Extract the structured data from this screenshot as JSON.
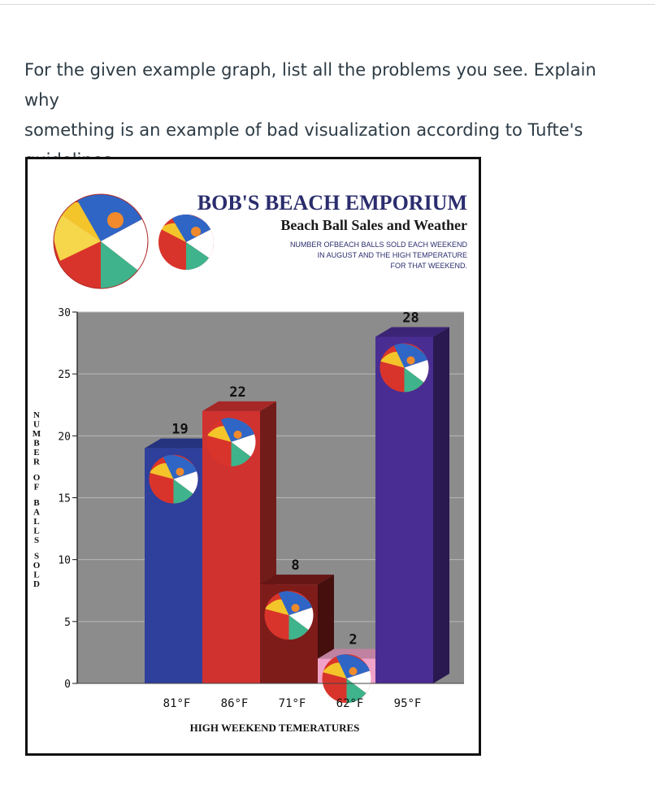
{
  "question": {
    "lines": [
      "For the given example graph, list all the problems you see. Explain why",
      "something is an example of bad visualization according to Tufte's",
      "guidelines."
    ]
  },
  "chart_data": {
    "type": "bar",
    "title": "BOB'S BEACH EMPORIUM",
    "subtitle": "Beach Ball Sales and Weather",
    "note_lines": [
      "NUMBER OFBEACH BALLS SOLD EACH WEEKEND",
      "IN AUGUST AND THE HIGH TEMPERATURE",
      "FOR THAT WEEKEND."
    ],
    "categories": [
      "81°F",
      "86°F",
      "71°F",
      "62°F",
      "95°F"
    ],
    "values": [
      19,
      22,
      8,
      2,
      28
    ],
    "value_labels": [
      "19",
      "22",
      "8",
      "2",
      "28"
    ],
    "bar_colors": [
      "#2e3f9c",
      "#d0322f",
      "#7e1c1a",
      "#f0a2c8",
      "#4a2d92"
    ],
    "ylim": [
      0,
      30
    ],
    "yticks": [
      0,
      5,
      10,
      15,
      20,
      25,
      30
    ],
    "xlabel": "HIGH WEEKEND TEMERATURES",
    "ylabel": "NUMBER OF BALLS SOLD",
    "grid": true,
    "background": "#8c8c8c"
  }
}
